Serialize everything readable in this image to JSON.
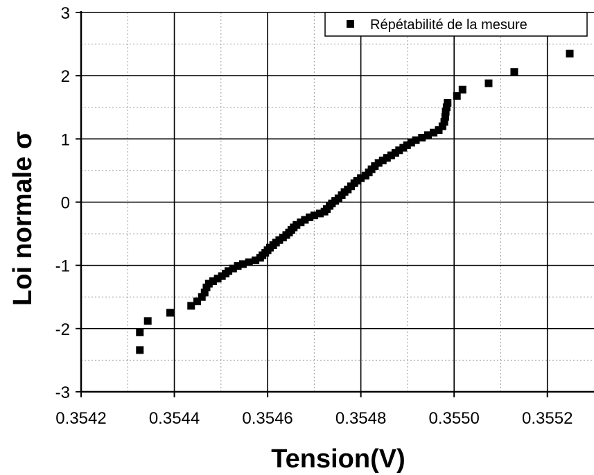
{
  "chart_data": {
    "type": "scatter",
    "xlabel": "Tension(V)",
    "ylabel": "Loi normale σ",
    "xlim": [
      0.3542,
      0.3553
    ],
    "ylim": [
      -3,
      3
    ],
    "x_ticks": [
      "0.3542",
      "0.3544",
      "0.3546",
      "0.3548",
      "0.3550",
      "0.3552"
    ],
    "y_ticks": [
      "-3",
      "-2",
      "-1",
      "0",
      "1",
      "2",
      "3"
    ],
    "grid": true,
    "legend_position": "top-right",
    "marker_color": "#000000",
    "series": [
      {
        "name": "Répétabilité de la mesure",
        "points": [
          [
            0.354326,
            -2.34
          ],
          [
            0.354326,
            -2.06
          ],
          [
            0.354343,
            -1.88
          ],
          [
            0.354391,
            -1.75
          ],
          [
            0.354436,
            -1.64
          ],
          [
            0.354449,
            -1.57
          ],
          [
            0.354459,
            -1.5
          ],
          [
            0.354465,
            -1.43
          ],
          [
            0.354469,
            -1.35
          ],
          [
            0.354474,
            -1.29
          ],
          [
            0.354483,
            -1.25
          ],
          [
            0.354493,
            -1.21
          ],
          [
            0.354502,
            -1.17
          ],
          [
            0.35451,
            -1.13
          ],
          [
            0.354516,
            -1.09
          ],
          [
            0.354526,
            -1.05
          ],
          [
            0.354536,
            -1.01
          ],
          [
            0.354547,
            -0.98
          ],
          [
            0.35456,
            -0.95
          ],
          [
            0.354574,
            -0.92
          ],
          [
            0.354584,
            -0.88
          ],
          [
            0.354589,
            -0.84
          ],
          [
            0.354595,
            -0.8
          ],
          [
            0.3546,
            -0.76
          ],
          [
            0.354605,
            -0.72
          ],
          [
            0.354612,
            -0.68
          ],
          [
            0.354618,
            -0.64
          ],
          [
            0.354625,
            -0.6
          ],
          [
            0.354633,
            -0.56
          ],
          [
            0.35464,
            -0.52
          ],
          [
            0.354646,
            -0.48
          ],
          [
            0.354651,
            -0.44
          ],
          [
            0.354656,
            -0.4
          ],
          [
            0.354662,
            -0.36
          ],
          [
            0.354671,
            -0.32
          ],
          [
            0.35468,
            -0.28
          ],
          [
            0.35469,
            -0.24
          ],
          [
            0.3547,
            -0.21
          ],
          [
            0.354712,
            -0.18
          ],
          [
            0.354722,
            -0.15
          ],
          [
            0.354727,
            -0.11
          ],
          [
            0.354733,
            -0.06
          ],
          [
            0.354738,
            -0.02
          ],
          [
            0.354745,
            0.02
          ],
          [
            0.354752,
            0.06
          ],
          [
            0.354759,
            0.11
          ],
          [
            0.354765,
            0.16
          ],
          [
            0.354772,
            0.2
          ],
          [
            0.354779,
            0.25
          ],
          [
            0.354786,
            0.3
          ],
          [
            0.354792,
            0.34
          ],
          [
            0.3548,
            0.38
          ],
          [
            0.35481,
            0.42
          ],
          [
            0.354817,
            0.47
          ],
          [
            0.354823,
            0.52
          ],
          [
            0.35483,
            0.57
          ],
          [
            0.354838,
            0.62
          ],
          [
            0.354847,
            0.66
          ],
          [
            0.354856,
            0.7
          ],
          [
            0.354865,
            0.74
          ],
          [
            0.354874,
            0.78
          ],
          [
            0.354882,
            0.82
          ],
          [
            0.354891,
            0.86
          ],
          [
            0.354899,
            0.9
          ],
          [
            0.354908,
            0.94
          ],
          [
            0.354918,
            0.98
          ],
          [
            0.354931,
            1.02
          ],
          [
            0.354944,
            1.06
          ],
          [
            0.354956,
            1.1
          ],
          [
            0.354967,
            1.14
          ],
          [
            0.354975,
            1.2
          ],
          [
            0.354979,
            1.27
          ],
          [
            0.354981,
            1.35
          ],
          [
            0.354982,
            1.43
          ],
          [
            0.354984,
            1.5
          ],
          [
            0.354986,
            1.57
          ],
          [
            0.355006,
            1.68
          ],
          [
            0.355018,
            1.78
          ],
          [
            0.355074,
            1.88
          ],
          [
            0.355129,
            2.06
          ],
          [
            0.355248,
            2.35
          ]
        ]
      }
    ]
  }
}
